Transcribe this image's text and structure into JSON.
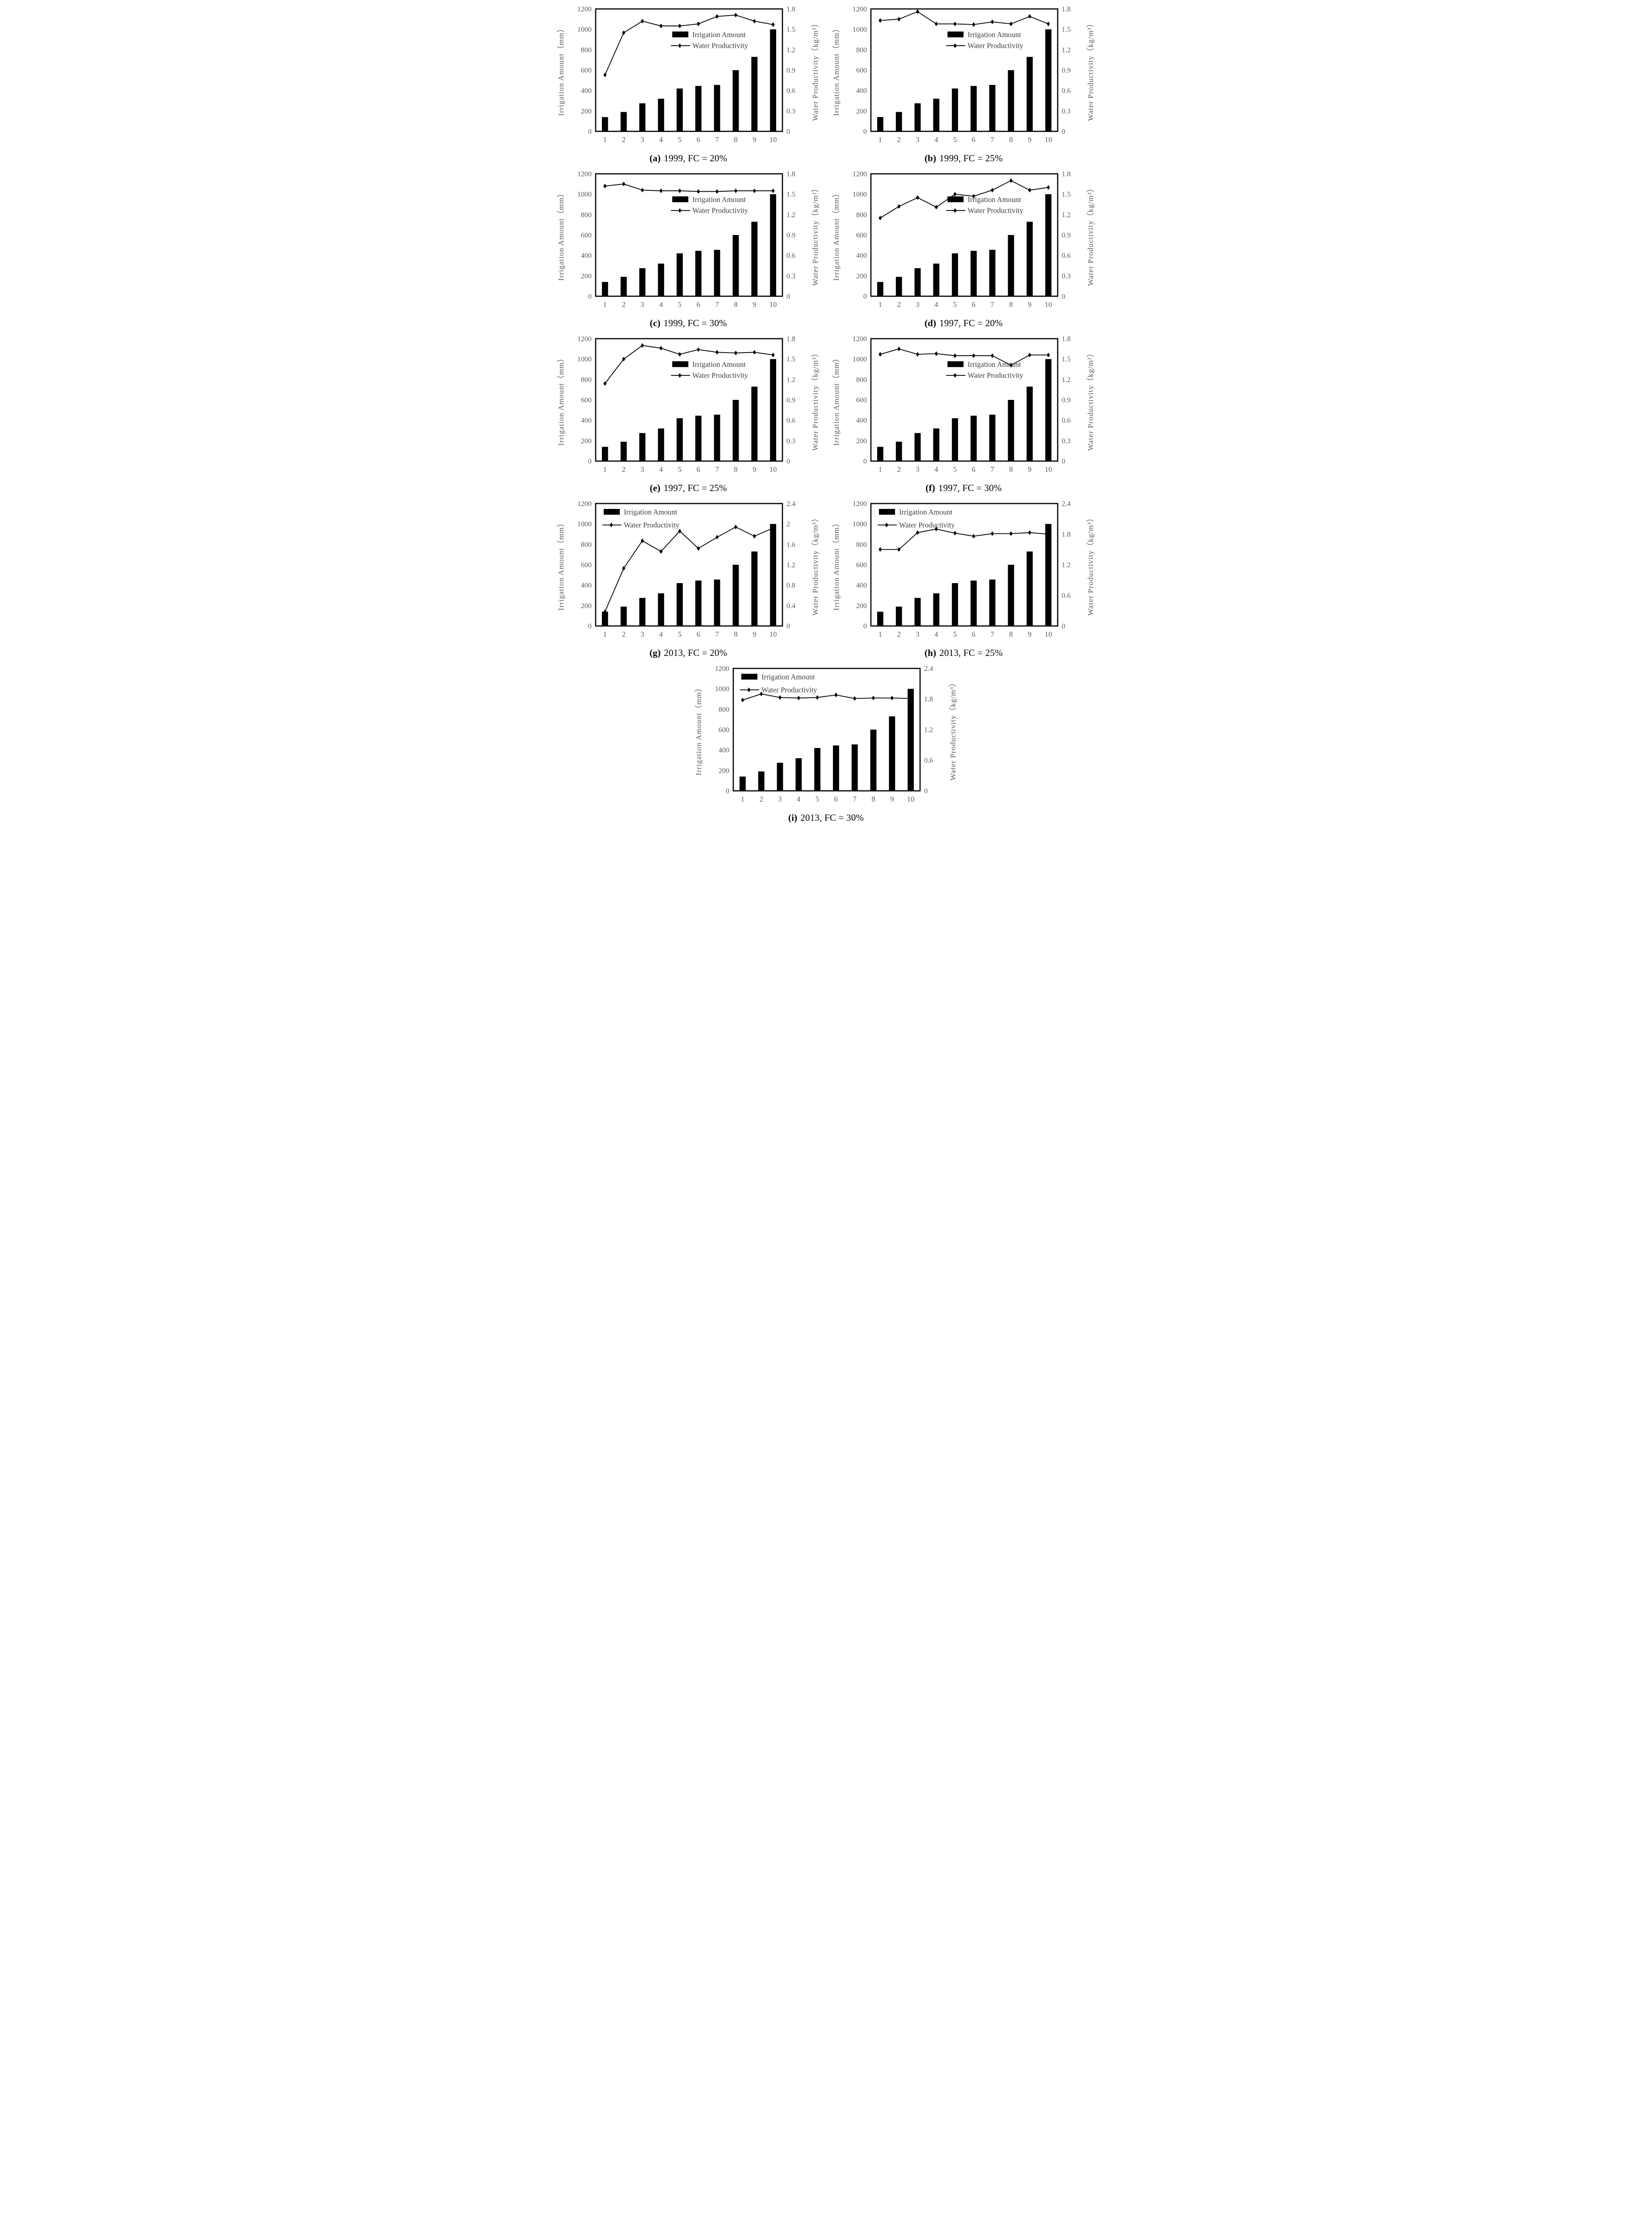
{
  "figure": {
    "left_axis_title": "Irrigation Amount（mm）",
    "right_axis_title": "Water Productivity（kg/m³）",
    "legend": {
      "bar_label": "Irrigation Amount",
      "line_label": "Water Productivity"
    },
    "x_categories": [
      "1",
      "2",
      "3",
      "4",
      "5",
      "6",
      "7",
      "8",
      "9",
      "10"
    ],
    "colors": {
      "bar": "#000000",
      "line": "#000000",
      "marker": "#000000",
      "frame": "#000000",
      "tick_text": "#595959",
      "axis_title_text": "#595959",
      "legend_text": "#3d3d3d",
      "caption_text": "#000000",
      "background": "#ffffff"
    }
  },
  "chart_data": [
    {
      "id": "a",
      "type": "bar+line",
      "caption_label": "(a)",
      "caption_rest": "1999, FC = 20%",
      "categories": [
        1,
        2,
        3,
        4,
        5,
        6,
        7,
        8,
        9,
        10
      ],
      "left_axis": {
        "min": 0,
        "max": 1200,
        "step": 200
      },
      "right_axis": {
        "min": 0,
        "max": 1.8,
        "step": 0.3
      },
      "legend_position": "mid-right",
      "series": [
        {
          "name": "Irrigation Amount",
          "type": "bar",
          "axis": "left",
          "unit": "mm",
          "values": [
            140,
            190,
            275,
            320,
            420,
            445,
            455,
            600,
            730,
            1000
          ]
        },
        {
          "name": "Water Productivity",
          "type": "line",
          "axis": "right",
          "unit": "kg/m3",
          "values": [
            0.83,
            1.45,
            1.62,
            1.55,
            1.55,
            1.58,
            1.69,
            1.71,
            1.62,
            1.57
          ]
        }
      ]
    },
    {
      "id": "b",
      "type": "bar+line",
      "caption_label": "(b)",
      "caption_rest": "1999, FC = 25%",
      "categories": [
        1,
        2,
        3,
        4,
        5,
        6,
        7,
        8,
        9,
        10
      ],
      "left_axis": {
        "min": 0,
        "max": 1200,
        "step": 200
      },
      "right_axis": {
        "min": 0,
        "max": 1.8,
        "step": 0.3
      },
      "legend_position": "mid-right",
      "series": [
        {
          "name": "Irrigation Amount",
          "type": "bar",
          "axis": "left",
          "unit": "mm",
          "values": [
            140,
            190,
            275,
            320,
            420,
            445,
            455,
            600,
            730,
            1000
          ]
        },
        {
          "name": "Water Productivity",
          "type": "line",
          "axis": "right",
          "unit": "kg/m3",
          "values": [
            1.63,
            1.65,
            1.76,
            1.58,
            1.58,
            1.57,
            1.61,
            1.58,
            1.69,
            1.58
          ]
        }
      ]
    },
    {
      "id": "c",
      "type": "bar+line",
      "caption_label": "(c)",
      "caption_rest": "1999, FC = 30%",
      "categories": [
        1,
        2,
        3,
        4,
        5,
        6,
        7,
        8,
        9,
        10
      ],
      "left_axis": {
        "min": 0,
        "max": 1200,
        "step": 200
      },
      "right_axis": {
        "min": 0,
        "max": 1.8,
        "step": 0.3
      },
      "legend_position": "mid-right",
      "series": [
        {
          "name": "Irrigation Amount",
          "type": "bar",
          "axis": "left",
          "unit": "mm",
          "values": [
            140,
            190,
            275,
            320,
            420,
            445,
            455,
            600,
            730,
            1000
          ]
        },
        {
          "name": "Water Productivity",
          "type": "line",
          "axis": "right",
          "unit": "kg/m3",
          "values": [
            1.62,
            1.65,
            1.56,
            1.55,
            1.55,
            1.54,
            1.54,
            1.55,
            1.55,
            1.55
          ]
        }
      ]
    },
    {
      "id": "d",
      "type": "bar+line",
      "caption_label": "(d)",
      "caption_rest": "1997, FC = 20%",
      "categories": [
        1,
        2,
        3,
        4,
        5,
        6,
        7,
        8,
        9,
        10
      ],
      "left_axis": {
        "min": 0,
        "max": 1200,
        "step": 200
      },
      "right_axis": {
        "min": 0,
        "max": 1.8,
        "step": 0.3
      },
      "legend_position": "mid-right",
      "series": [
        {
          "name": "Irrigation Amount",
          "type": "bar",
          "axis": "left",
          "unit": "mm",
          "values": [
            140,
            190,
            275,
            320,
            420,
            445,
            455,
            600,
            730,
            1000
          ]
        },
        {
          "name": "Water Productivity",
          "type": "line",
          "axis": "right",
          "unit": "kg/m3",
          "values": [
            1.15,
            1.32,
            1.45,
            1.31,
            1.5,
            1.47,
            1.56,
            1.7,
            1.56,
            1.6
          ]
        }
      ]
    },
    {
      "id": "e",
      "type": "bar+line",
      "caption_label": "(e)",
      "caption_rest": "1997, FC = 25%",
      "categories": [
        1,
        2,
        3,
        4,
        5,
        6,
        7,
        8,
        9,
        10
      ],
      "left_axis": {
        "min": 0,
        "max": 1200,
        "step": 200
      },
      "right_axis": {
        "min": 0,
        "max": 1.8,
        "step": 0.3
      },
      "legend_position": "mid-right",
      "series": [
        {
          "name": "Irrigation Amount",
          "type": "bar",
          "axis": "left",
          "unit": "mm",
          "values": [
            140,
            190,
            275,
            320,
            420,
            445,
            455,
            600,
            730,
            1000
          ]
        },
        {
          "name": "Water Productivity",
          "type": "line",
          "axis": "right",
          "unit": "kg/m3",
          "values": [
            1.14,
            1.5,
            1.7,
            1.66,
            1.57,
            1.64,
            1.6,
            1.59,
            1.6,
            1.56
          ]
        }
      ]
    },
    {
      "id": "f",
      "type": "bar+line",
      "caption_label": "(f)",
      "caption_rest": "1997, FC = 30%",
      "categories": [
        1,
        2,
        3,
        4,
        5,
        6,
        7,
        8,
        9,
        10
      ],
      "left_axis": {
        "min": 0,
        "max": 1200,
        "step": 200
      },
      "right_axis": {
        "min": 0,
        "max": 1.8,
        "step": 0.3
      },
      "legend_position": "mid-right",
      "series": [
        {
          "name": "Irrigation Amount",
          "type": "bar",
          "axis": "left",
          "unit": "mm",
          "values": [
            140,
            190,
            275,
            320,
            420,
            445,
            455,
            600,
            730,
            1000
          ]
        },
        {
          "name": "Water Productivity",
          "type": "line",
          "axis": "right",
          "unit": "kg/m3",
          "values": [
            1.57,
            1.65,
            1.57,
            1.58,
            1.55,
            1.55,
            1.55,
            1.41,
            1.56,
            1.56
          ]
        }
      ]
    },
    {
      "id": "g",
      "type": "bar+line",
      "caption_label": "(g)",
      "caption_rest": "2013, FC = 20%",
      "categories": [
        1,
        2,
        3,
        4,
        5,
        6,
        7,
        8,
        9,
        10
      ],
      "left_axis": {
        "min": 0,
        "max": 1200,
        "step": 200
      },
      "right_axis": {
        "min": 0,
        "max": 2.4,
        "step": 0.4
      },
      "legend_position": "top-left",
      "series": [
        {
          "name": "Irrigation Amount",
          "type": "bar",
          "axis": "left",
          "unit": "mm",
          "values": [
            140,
            190,
            275,
            320,
            420,
            445,
            455,
            600,
            730,
            1000
          ]
        },
        {
          "name": "Water Productivity",
          "type": "line",
          "axis": "right",
          "unit": "kg/m3",
          "values": [
            0.28,
            1.13,
            1.67,
            1.46,
            1.86,
            1.52,
            1.74,
            1.94,
            1.76,
            1.92
          ]
        }
      ]
    },
    {
      "id": "h",
      "type": "bar+line",
      "caption_label": "(h)",
      "caption_rest": "2013, FC = 25%",
      "categories": [
        1,
        2,
        3,
        4,
        5,
        6,
        7,
        8,
        9,
        10
      ],
      "left_axis": {
        "min": 0,
        "max": 1200,
        "step": 200
      },
      "right_axis": {
        "min": 0,
        "max": 2.4,
        "step": 0.6
      },
      "legend_position": "top-left",
      "series": [
        {
          "name": "Irrigation Amount",
          "type": "bar",
          "axis": "left",
          "unit": "mm",
          "values": [
            140,
            190,
            275,
            320,
            420,
            445,
            455,
            600,
            730,
            1000
          ]
        },
        {
          "name": "Water Productivity",
          "type": "line",
          "axis": "right",
          "unit": "kg/m3",
          "values": [
            1.5,
            1.5,
            1.83,
            1.9,
            1.82,
            1.76,
            1.81,
            1.81,
            1.83,
            1.8
          ]
        }
      ]
    },
    {
      "id": "i",
      "type": "bar+line",
      "caption_label": "(i)",
      "caption_rest": "2013, FC = 30%",
      "categories": [
        1,
        2,
        3,
        4,
        5,
        6,
        7,
        8,
        9,
        10
      ],
      "left_axis": {
        "min": 0,
        "max": 1200,
        "step": 200
      },
      "right_axis": {
        "min": 0,
        "max": 2.4,
        "step": 0.6
      },
      "legend_position": "top-left",
      "solo_row": true,
      "series": [
        {
          "name": "Irrigation Amount",
          "type": "bar",
          "axis": "left",
          "unit": "mm",
          "values": [
            140,
            190,
            275,
            320,
            420,
            445,
            455,
            600,
            730,
            1000
          ]
        },
        {
          "name": "Water Productivity",
          "type": "line",
          "axis": "right",
          "unit": "kg/m3",
          "values": [
            1.78,
            1.9,
            1.83,
            1.82,
            1.83,
            1.88,
            1.81,
            1.82,
            1.82,
            1.81
          ]
        }
      ]
    }
  ]
}
